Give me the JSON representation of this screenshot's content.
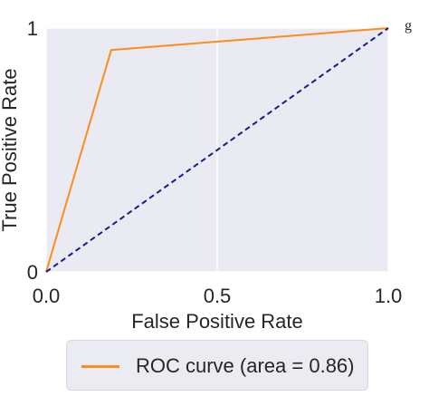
{
  "chart_data": {
    "type": "line",
    "xlabel": "False Positive Rate",
    "ylabel": "True Positive Rate",
    "xlim": [
      0,
      1
    ],
    "ylim": [
      0,
      1
    ],
    "x_ticks": [
      "0.0",
      "0.5",
      "1.0"
    ],
    "y_ticks": [
      "0",
      "1"
    ],
    "grid": true,
    "legend_position": "bottom",
    "series": [
      {
        "name": "ROC curve (area = 0.86)",
        "x": [
          0.0,
          0.19,
          1.0
        ],
        "y": [
          0.0,
          0.91,
          1.0
        ],
        "color": "#ff8c1a",
        "style": "solid"
      },
      {
        "name": "",
        "x": [
          0.0,
          1.0
        ],
        "y": [
          0.0,
          1.0
        ],
        "color": "#1a1a8c",
        "style": "dashed"
      }
    ]
  },
  "legend": {
    "label": "ROC curve (area = 0.86)"
  },
  "colors": {
    "plot_background": "#eaeaf2",
    "grid": "#ffffff"
  },
  "header_fragment": "g"
}
